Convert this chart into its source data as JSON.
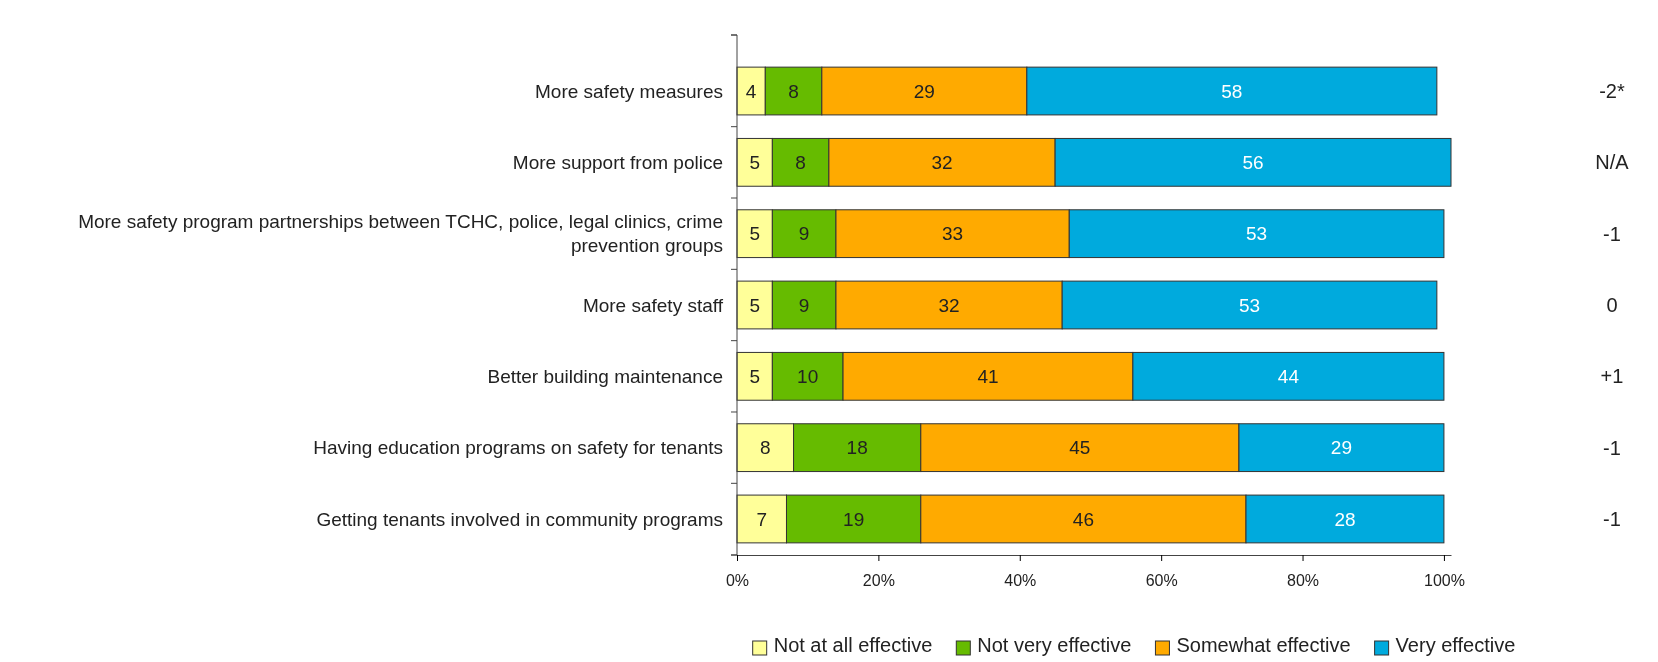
{
  "chart_data": {
    "type": "bar",
    "orientation": "horizontal",
    "stacked": true,
    "data_labels": true,
    "legend": "bottom",
    "grid": false,
    "categories": [
      "More safety measures",
      "More support from police",
      "More safety program partnerships between TCHC, police, legal clinics, crime prevention groups",
      "More safety staff",
      "Better building maintenance",
      "Having education programs on safety for tenants",
      "Getting tenants involved in community programs"
    ],
    "series": [
      {
        "name": "Not at all effective",
        "color": "#ffff99",
        "values": [
          4,
          5,
          5,
          5,
          5,
          8,
          7
        ]
      },
      {
        "name": "Not very effective",
        "color": "#66bb00",
        "values": [
          8,
          8,
          9,
          9,
          10,
          18,
          19
        ]
      },
      {
        "name": "Somewhat effective",
        "color": "#ffaa00",
        "values": [
          29,
          32,
          33,
          32,
          41,
          45,
          46
        ]
      },
      {
        "name": "Very effective",
        "color": "#00aadd",
        "values": [
          58,
          56,
          53,
          53,
          44,
          29,
          28
        ]
      }
    ],
    "xlim": [
      0,
      101
    ],
    "xticks": [
      {
        "value": 0,
        "label": "0%"
      },
      {
        "value": 20,
        "label": "20%"
      },
      {
        "value": 40,
        "label": "40%"
      },
      {
        "value": 60,
        "label": "60%"
      },
      {
        "value": 80,
        "label": "80%"
      },
      {
        "value": 100,
        "label": "100%"
      }
    ],
    "annotations": [
      "-2*",
      "N/A",
      "-1",
      "0",
      "+1",
      "-1",
      "-1"
    ]
  }
}
